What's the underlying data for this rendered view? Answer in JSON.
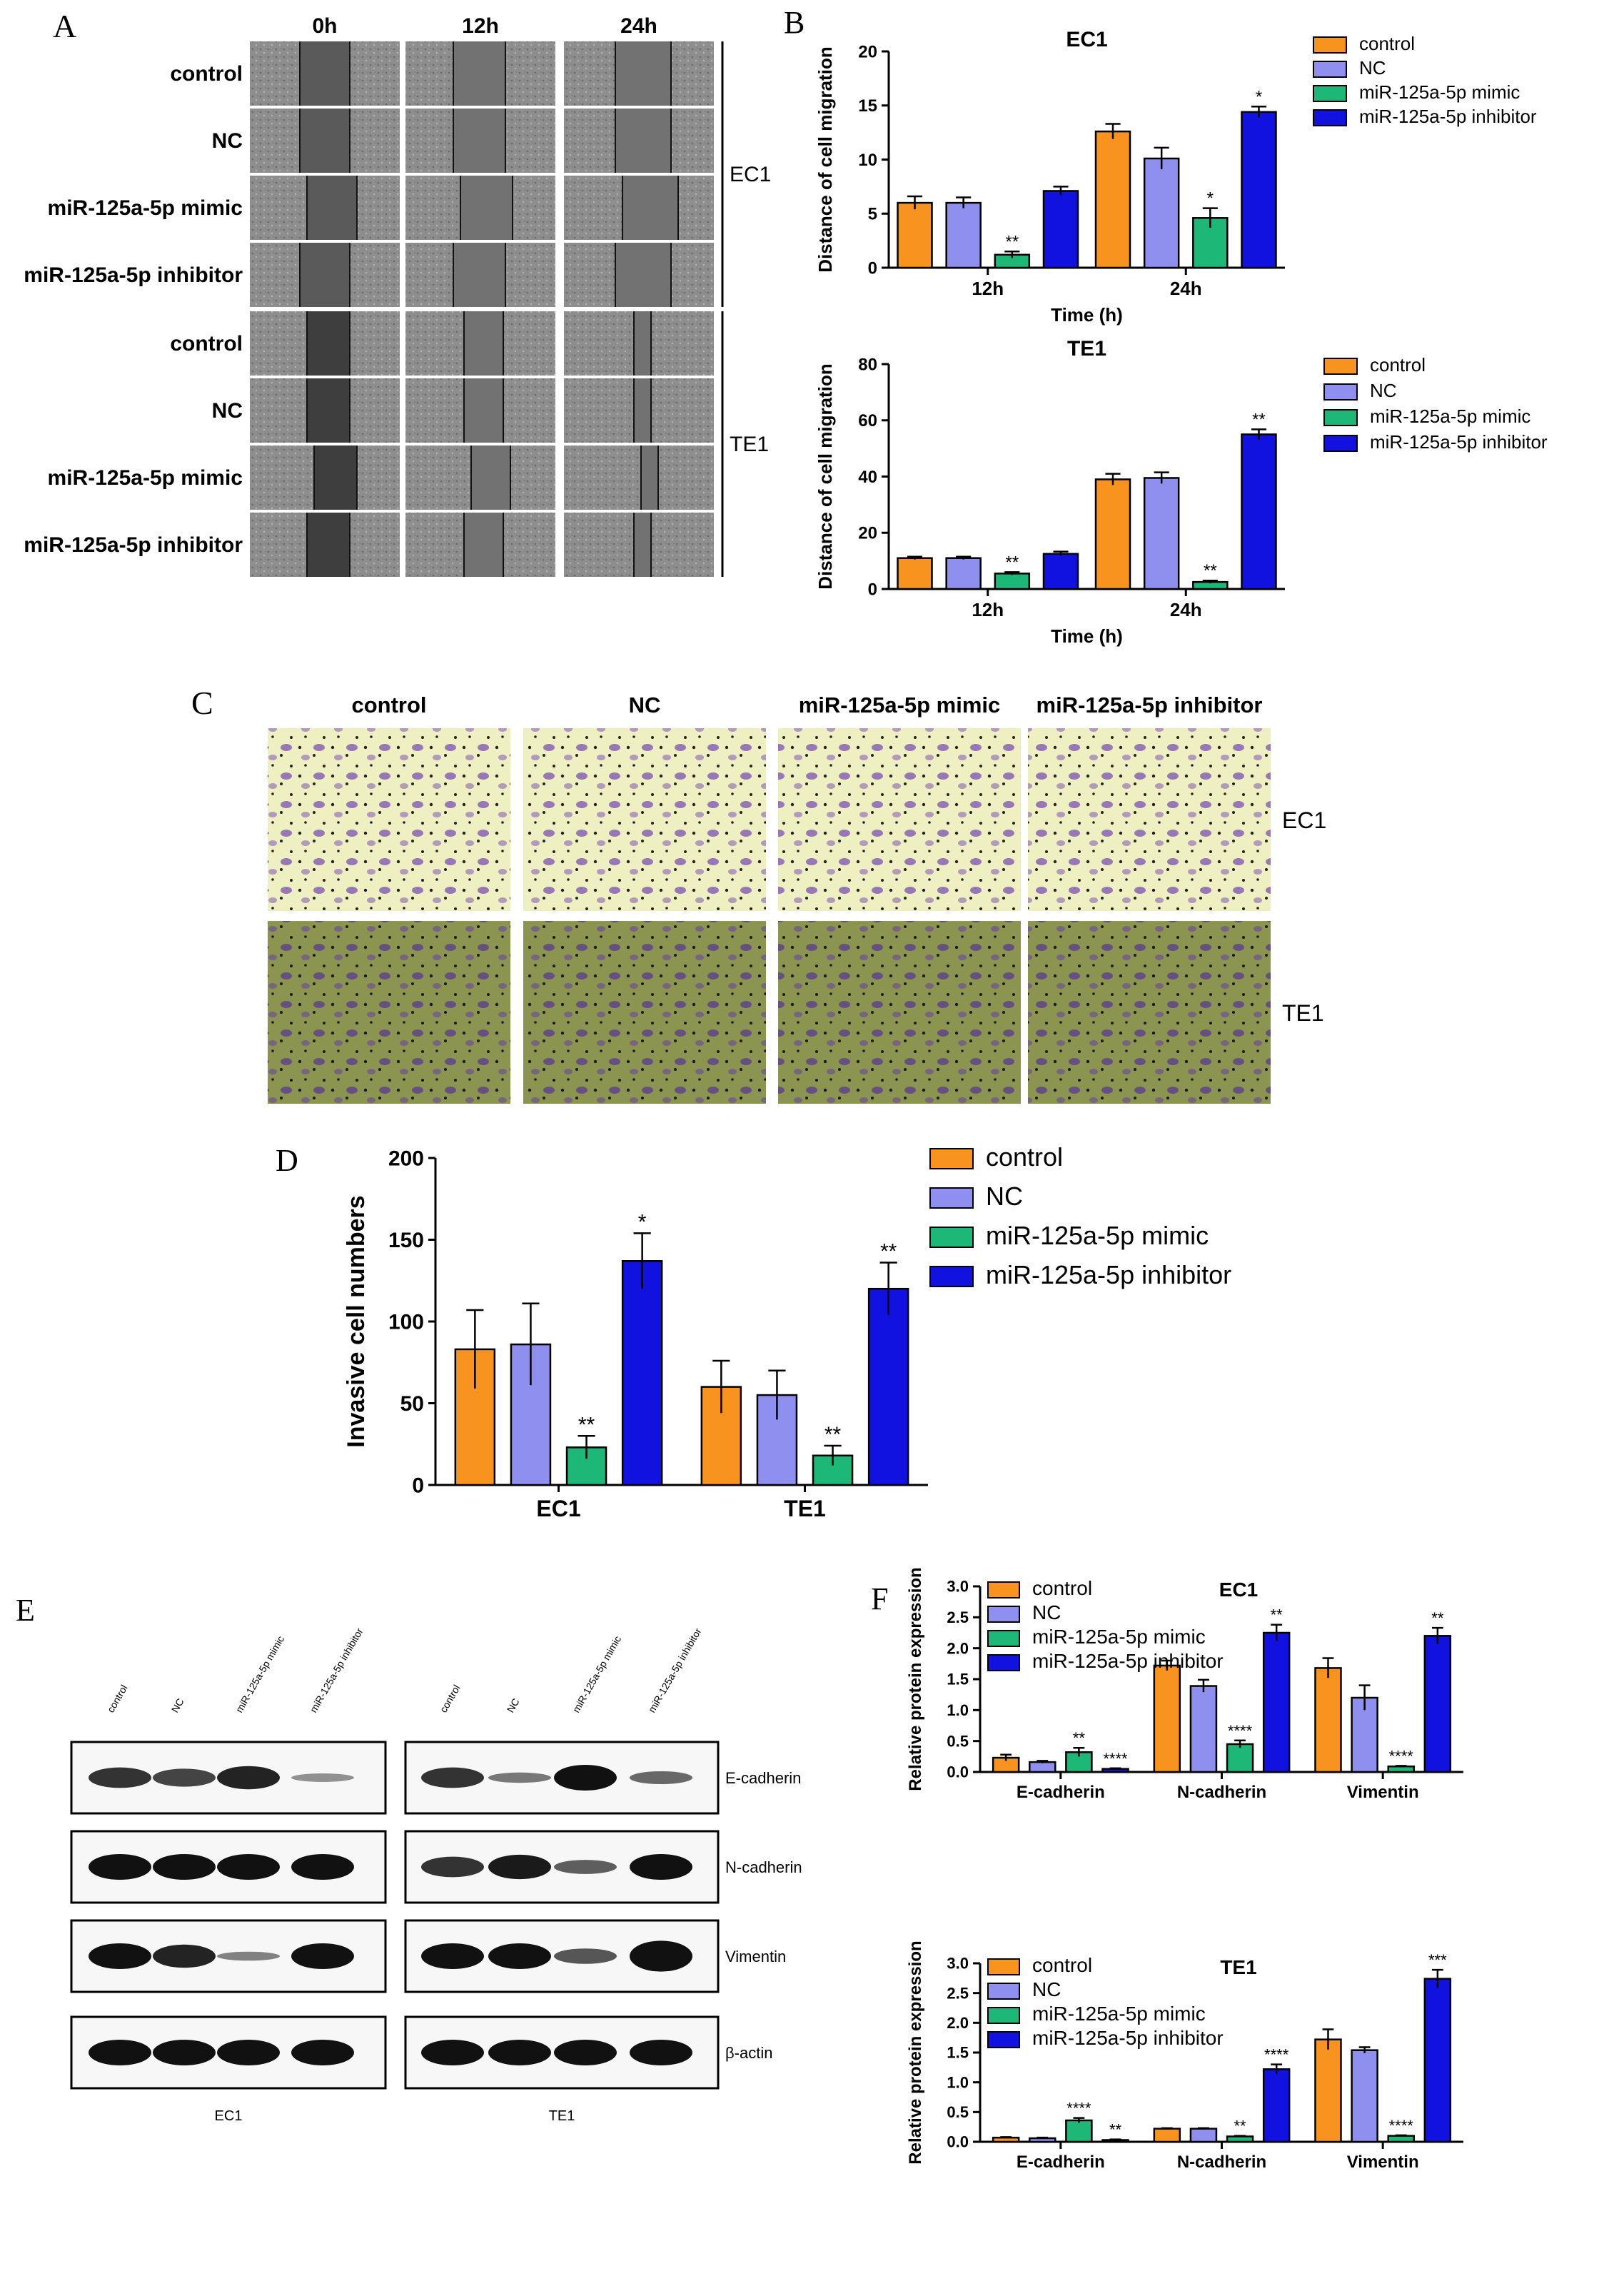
{
  "panel_labels": {
    "a": "A",
    "b": "B",
    "c": "C",
    "d": "D",
    "e": "E",
    "f": "F"
  },
  "colors": {
    "control": "#f7931e",
    "nc": "#8f8fef",
    "mimic": "#1db877",
    "inhibitor": "#1212e0"
  },
  "panel_a": {
    "times": [
      "0h",
      "12h",
      "24h"
    ],
    "groups": [
      "control",
      "NC",
      "miR-125a-5p mimic",
      "miR-125a-5p inhibitor"
    ],
    "cell_lines": [
      "EC1",
      "TE1"
    ]
  },
  "panel_c": {
    "groups": [
      "control",
      "NC",
      "miR-125a-5p mimic",
      "miR-125a-5p inhibitor"
    ],
    "cell_lines": [
      "EC1",
      "TE1"
    ]
  },
  "panel_e": {
    "lanes": [
      "control",
      "NC",
      "miR-125a-5p mimic",
      "miR-125a-5p inhibitor"
    ],
    "proteins": [
      "E-cadherin",
      "N-cadherin",
      "Vimentin",
      "β-actin"
    ],
    "blots": [
      "EC1",
      "TE1"
    ]
  },
  "chart_data": [
    {
      "id": "B-EC1",
      "type": "bar",
      "title": "EC1",
      "xlabel": "Time (h)",
      "ylabel": "Distance of cell migration",
      "ylim": [
        0,
        20
      ],
      "yticks": [
        "0",
        "5",
        "10",
        "15",
        "20"
      ],
      "categories": [
        "12h",
        "24h"
      ],
      "series": [
        {
          "name": "control",
          "values": [
            6.0,
            12.6
          ],
          "errors": [
            0.6,
            0.7
          ]
        },
        {
          "name": "NC",
          "values": [
            6.0,
            10.1
          ],
          "errors": [
            0.5,
            1.0
          ]
        },
        {
          "name": "miR-125a-5p mimic",
          "values": [
            1.2,
            4.6
          ],
          "errors": [
            0.3,
            0.9
          ]
        },
        {
          "name": "miR-125a-5p inhibitor",
          "values": [
            7.1,
            14.4
          ],
          "errors": [
            0.4,
            0.5
          ]
        }
      ],
      "annotations": [
        [
          "",
          "",
          "**",
          ""
        ],
        [
          "",
          "",
          "*",
          "*"
        ]
      ],
      "legend": "top-right"
    },
    {
      "id": "B-TE1",
      "type": "bar",
      "title": "TE1",
      "xlabel": "Time (h)",
      "ylabel": "Distance of cell migration",
      "ylim": [
        0,
        80
      ],
      "yticks": [
        "0",
        "20",
        "40",
        "60",
        "80"
      ],
      "categories": [
        "12h",
        "24h"
      ],
      "series": [
        {
          "name": "control",
          "values": [
            11,
            39
          ],
          "errors": [
            0.5,
            2
          ]
        },
        {
          "name": "NC",
          "values": [
            11,
            39.5
          ],
          "errors": [
            0.5,
            2
          ]
        },
        {
          "name": "miR-125a-5p mimic",
          "values": [
            5.5,
            2.5
          ],
          "errors": [
            0.5,
            0.5
          ]
        },
        {
          "name": "miR-125a-5p inhibitor",
          "values": [
            12.5,
            55
          ],
          "errors": [
            0.8,
            1.8
          ]
        }
      ],
      "annotations": [
        [
          "",
          "",
          "**",
          ""
        ],
        [
          "",
          "",
          "**",
          "**"
        ]
      ],
      "legend": "top-right"
    },
    {
      "id": "D",
      "type": "bar",
      "title": "",
      "xlabel": "",
      "ylabel": "Invasive cell numbers",
      "ylim": [
        0,
        200
      ],
      "yticks": [
        "0",
        "50",
        "100",
        "150",
        "200"
      ],
      "categories": [
        "EC1",
        "TE1"
      ],
      "series": [
        {
          "name": "control",
          "values": [
            83,
            60
          ],
          "errors": [
            24,
            16
          ]
        },
        {
          "name": "NC",
          "values": [
            86,
            55
          ],
          "errors": [
            25,
            15
          ]
        },
        {
          "name": "miR-125a-5p mimic",
          "values": [
            23,
            18
          ],
          "errors": [
            7,
            6
          ]
        },
        {
          "name": "miR-125a-5p inhibitor",
          "values": [
            137,
            120
          ],
          "errors": [
            17,
            16
          ]
        }
      ],
      "annotations": [
        [
          "",
          "",
          "**",
          "*"
        ],
        [
          "",
          "",
          "**",
          "**"
        ]
      ],
      "legend": "top-right"
    },
    {
      "id": "F-EC1",
      "type": "bar",
      "title": "EC1",
      "xlabel": "",
      "ylabel": "Relative protein expression",
      "ylim": [
        0,
        3.0
      ],
      "yticks": [
        "0.0",
        "0.5",
        "1.0",
        "1.5",
        "2.0",
        "2.5",
        "3.0"
      ],
      "categories": [
        "E-cadherin",
        "N-cadherin",
        "Vimentin"
      ],
      "series": [
        {
          "name": "control",
          "values": [
            0.23,
            1.72,
            1.68
          ],
          "errors": [
            0.05,
            0.08,
            0.16
          ]
        },
        {
          "name": "NC",
          "values": [
            0.16,
            1.39,
            1.2
          ],
          "errors": [
            0.02,
            0.1,
            0.2
          ]
        },
        {
          "name": "miR-125a-5p mimic",
          "values": [
            0.32,
            0.45,
            0.09
          ],
          "errors": [
            0.07,
            0.06,
            0.01
          ]
        },
        {
          "name": "miR-125a-5p inhibitor",
          "values": [
            0.05,
            2.25,
            2.2
          ],
          "errors": [
            0.01,
            0.13,
            0.13
          ]
        }
      ],
      "annotations": [
        [
          "",
          "",
          "**",
          "****"
        ],
        [
          "",
          "",
          "****",
          "**"
        ],
        [
          "",
          "",
          "****",
          "**"
        ]
      ],
      "legend": "top-left"
    },
    {
      "id": "F-TE1",
      "type": "bar",
      "title": "TE1",
      "xlabel": "",
      "ylabel": "Relative protein expression",
      "ylim": [
        0,
        3.0
      ],
      "yticks": [
        "0.0",
        "0.5",
        "1.0",
        "1.5",
        "2.0",
        "2.5",
        "3.0"
      ],
      "categories": [
        "E-cadherin",
        "N-cadherin",
        "Vimentin"
      ],
      "series": [
        {
          "name": "control",
          "values": [
            0.07,
            0.22,
            1.72
          ],
          "errors": [
            0.01,
            0.01,
            0.17
          ]
        },
        {
          "name": "NC",
          "values": [
            0.06,
            0.22,
            1.54
          ],
          "errors": [
            0.01,
            0.01,
            0.05
          ]
        },
        {
          "name": "miR-125a-5p mimic",
          "values": [
            0.36,
            0.09,
            0.1
          ],
          "errors": [
            0.04,
            0.01,
            0.01
          ]
        },
        {
          "name": "miR-125a-5p inhibitor",
          "values": [
            0.03,
            1.22,
            2.74
          ],
          "errors": [
            0.01,
            0.08,
            0.15
          ]
        }
      ],
      "annotations": [
        [
          "",
          "",
          "****",
          "**"
        ],
        [
          "",
          "",
          "**",
          "****"
        ],
        [
          "",
          "",
          "****",
          "***"
        ]
      ],
      "legend": "top-left"
    }
  ]
}
